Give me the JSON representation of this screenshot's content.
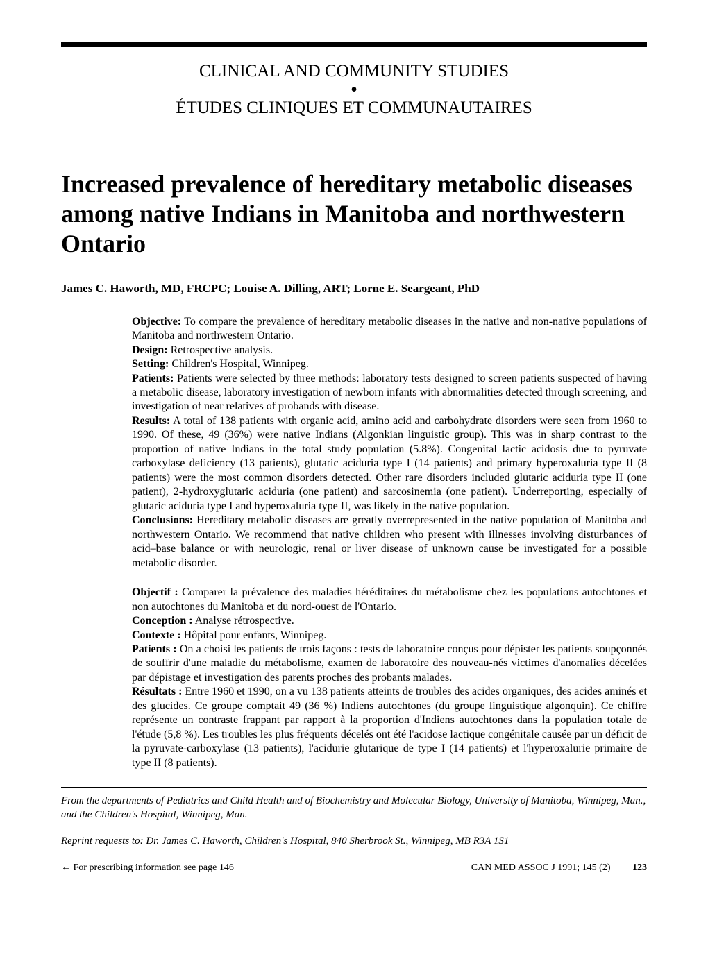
{
  "sectionHeader": {
    "line1": "CLINICAL AND COMMUNITY STUDIES",
    "line2": "ÉTUDES CLINIQUES ET COMMUNAUTAIRES"
  },
  "title": "Increased prevalence of hereditary metabolic diseases among native Indians in Manitoba and northwestern Ontario",
  "authors": "James C. Haworth, MD, FRCPC; Louise A. Dilling, ART; Lorne E. Seargeant, PhD",
  "abstract_en": {
    "objective_label": "Objective:",
    "objective_text": " To compare the prevalence of hereditary metabolic diseases in the native and non-native populations of Manitoba and northwestern Ontario.",
    "design_label": "Design:",
    "design_text": " Retrospective analysis.",
    "setting_label": "Setting:",
    "setting_text": " Children's Hospital, Winnipeg.",
    "patients_label": "Patients:",
    "patients_text": " Patients were selected by three methods: laboratory tests designed to screen patients suspected of having a metabolic disease, laboratory investigation of newborn infants with abnormalities detected through screening, and investigation of near relatives of probands with disease.",
    "results_label": "Results:",
    "results_text": " A total of 138 patients with organic acid, amino acid and carbohydrate disorders were seen from 1960 to 1990. Of these, 49 (36%) were native Indians (Algonkian linguistic group). This was in sharp contrast to the proportion of native Indians in the total study population (5.8%). Congenital lactic acidosis due to pyruvate carboxylase deficiency (13 patients), glutaric aciduria type I (14 patients) and primary hyperoxaluria type II (8 patients) were the most common disorders detected. Other rare disorders included glutaric aciduria type II (one patient), 2-hydroxyglutaric aciduria (one patient) and sarcosinemia (one patient). Underreporting, especially of glutaric aciduria type I and hyperoxaluria type II, was likely in the native population.",
    "conclusions_label": "Conclusions:",
    "conclusions_text": " Hereditary metabolic diseases are greatly overrepresented in the native population of Manitoba and northwestern Ontario. We recommend that native children who present with illnesses involving disturbances of acid–base balance or with neurologic, renal or liver disease of unknown cause be investigated for a possible metabolic disorder."
  },
  "abstract_fr": {
    "objectif_label": "Objectif :",
    "objectif_text": " Comparer la prévalence des maladies héréditaires du métabolisme chez les populations autochtones et non autochtones du Manitoba et du nord-ouest de l'Ontario.",
    "conception_label": "Conception :",
    "conception_text": " Analyse rétrospective.",
    "contexte_label": "Contexte :",
    "contexte_text": " Hôpital pour enfants, Winnipeg.",
    "patients_label": "Patients :",
    "patients_text": " On a choisi les patients de trois façons : tests de laboratoire conçus pour dépister les patients soupçonnés de souffrir d'une maladie du métabolisme, examen de laboratoire des nouveau-nés victimes d'anomalies décelées par dépistage et investigation des parents proches des probants malades.",
    "resultats_label": "Résultats :",
    "resultats_text": " Entre 1960 et 1990, on a vu 138 patients atteints de troubles des acides organiques, des acides aminés et des glucides. Ce groupe comptait 49 (36 %) Indiens autochtones (du groupe linguistique algonquin). Ce chiffre représente un contraste frappant par rapport à la proportion d'Indiens autochtones dans la population totale de l'étude (5,8 %). Les troubles les plus fréquents décelés ont été l'acidose lactique congénitale causée par un déficit de la pyruvate-carboxylase (13 patients), l'acidurie glutarique de type I (14 patients) et l'hyperoxalurie primaire de type II (8 patients)."
  },
  "affiliation": "From the departments of Pediatrics and Child Health and of Biochemistry and Molecular Biology, University of Manitoba, Winnipeg, Man., and the Children's Hospital, Winnipeg, Man.",
  "reprint": "Reprint requests to: Dr. James C. Haworth, Children's Hospital, 840 Sherbrook St., Winnipeg, MB R3A 1S1",
  "footer": {
    "left": "← For prescribing information see page 146",
    "journal": "CAN MED ASSOC J 1991; 145 (2)",
    "page": "123"
  }
}
